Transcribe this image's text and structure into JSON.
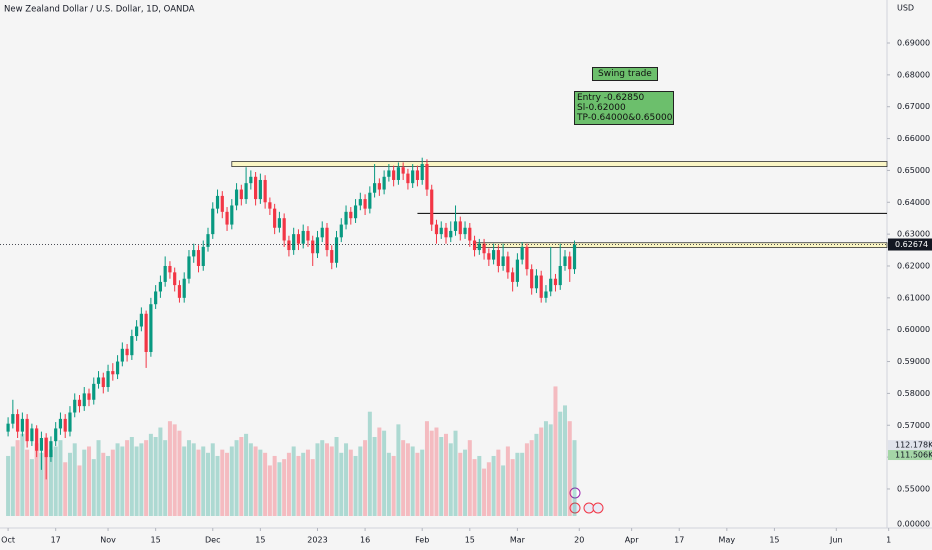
{
  "chart_data": {
    "type": "candlestick",
    "title": "New Zealand Dollar / U.S. Dollar, 1D, OANDA",
    "currency": "USD",
    "up_color": "#089981",
    "down_color": "#f23645",
    "xlim": [
      -1.7,
      184.65
    ],
    "ylim": [
      0.539,
      0.7035
    ],
    "volume_ylim": [
      0,
      250
    ],
    "bottom_axis_label": "0.00000",
    "yticks": [
      {
        "value": 0.69,
        "label": "0.69000"
      },
      {
        "value": 0.68,
        "label": "0.68000"
      },
      {
        "value": 0.67,
        "label": "0.67000"
      },
      {
        "value": 0.66,
        "label": "0.66000"
      },
      {
        "value": 0.65,
        "label": "0.65000"
      },
      {
        "value": 0.64,
        "label": "0.64000"
      },
      {
        "value": 0.63,
        "label": "0.63000"
      },
      {
        "value": 0.62,
        "label": "0.62000"
      },
      {
        "value": 0.61,
        "label": "0.61000"
      },
      {
        "value": 0.6,
        "label": "0.60000"
      },
      {
        "value": 0.59,
        "label": "0.59000"
      },
      {
        "value": 0.58,
        "label": "0.58000"
      },
      {
        "value": 0.57,
        "label": "0.57000"
      },
      {
        "value": 0.56,
        "label": "0.56000"
      },
      {
        "value": 0.55,
        "label": "0.55000"
      }
    ],
    "xticks": [
      {
        "value": 0,
        "label": "Oct"
      },
      {
        "value": 10,
        "label": "17"
      },
      {
        "value": 21,
        "label": "Nov"
      },
      {
        "value": 31,
        "label": "15"
      },
      {
        "value": 43,
        "label": "Dec"
      },
      {
        "value": 53,
        "label": "15"
      },
      {
        "value": 65,
        "label": "2023"
      },
      {
        "value": 75,
        "label": "16"
      },
      {
        "value": 87,
        "label": "Feb"
      },
      {
        "value": 97,
        "label": "15"
      },
      {
        "value": 107,
        "label": "Mar"
      },
      {
        "value": 120,
        "label": "20"
      },
      {
        "value": 131,
        "label": "Apr"
      },
      {
        "value": 141,
        "label": "17"
      },
      {
        "value": 151,
        "label": "May"
      },
      {
        "value": 161,
        "label": "15"
      },
      {
        "value": 174,
        "label": "Jun"
      },
      {
        "value": 185,
        "label": "1"
      }
    ],
    "open": [
      0.568,
      0.5705,
      0.5735,
      0.568,
      0.572,
      0.565,
      0.569,
      0.562,
      0.566,
      0.56,
      0.565,
      0.569,
      0.572,
      0.568,
      0.574,
      0.578,
      0.576,
      0.58,
      0.578,
      0.583,
      0.585,
      0.582,
      0.587,
      0.586,
      0.59,
      0.594,
      0.592,
      0.598,
      0.601,
      0.605,
      0.593,
      0.608,
      0.612,
      0.615,
      0.62,
      0.618,
      0.614,
      0.61,
      0.616,
      0.623,
      0.625,
      0.62,
      0.626,
      0.63,
      0.638,
      0.642,
      0.637,
      0.633,
      0.639,
      0.644,
      0.641,
      0.646,
      0.648,
      0.641,
      0.647,
      0.64,
      0.638,
      0.632,
      0.635,
      0.628,
      0.625,
      0.63,
      0.627,
      0.631,
      0.628,
      0.624,
      0.629,
      0.632,
      0.625,
      0.621,
      0.629,
      0.633,
      0.637,
      0.635,
      0.639,
      0.641,
      0.638,
      0.643,
      0.646,
      0.644,
      0.648,
      0.65,
      0.647,
      0.651,
      0.649,
      0.646,
      0.65,
      0.647,
      0.652,
      0.644,
      0.633,
      0.63,
      0.632,
      0.629,
      0.631,
      0.634,
      0.63,
      0.632,
      0.628,
      0.625,
      0.627,
      0.624,
      0.622,
      0.625,
      0.62,
      0.623,
      0.618,
      0.615,
      0.622,
      0.626,
      0.619,
      0.613,
      0.617,
      0.61,
      0.612,
      0.616,
      0.614,
      0.62,
      0.623,
      0.619
    ],
    "high": [
      0.5725,
      0.578,
      0.575,
      0.574,
      0.5735,
      0.5705,
      0.57,
      0.568,
      0.5675,
      0.5665,
      0.571,
      0.574,
      0.5735,
      0.576,
      0.58,
      0.5795,
      0.582,
      0.5815,
      0.585,
      0.587,
      0.5865,
      0.589,
      0.5895,
      0.592,
      0.596,
      0.5955,
      0.6,
      0.603,
      0.607,
      0.606,
      0.61,
      0.614,
      0.617,
      0.623,
      0.6215,
      0.6195,
      0.6155,
      0.618,
      0.625,
      0.627,
      0.6265,
      0.628,
      0.632,
      0.64,
      0.644,
      0.6435,
      0.6385,
      0.641,
      0.646,
      0.6455,
      0.651,
      0.65,
      0.6495,
      0.649,
      0.6485,
      0.6415,
      0.6395,
      0.637,
      0.6365,
      0.6295,
      0.632,
      0.6315,
      0.633,
      0.6325,
      0.6295,
      0.631,
      0.634,
      0.6335,
      0.6265,
      0.631,
      0.635,
      0.639,
      0.6385,
      0.641,
      0.643,
      0.6425,
      0.645,
      0.652,
      0.6475,
      0.65,
      0.652,
      0.6515,
      0.6525,
      0.6525,
      0.6505,
      0.652,
      0.6515,
      0.654,
      0.6535,
      0.6455,
      0.6345,
      0.634,
      0.6335,
      0.634,
      0.639,
      0.6355,
      0.634,
      0.6335,
      0.6295,
      0.6285,
      0.6285,
      0.6255,
      0.627,
      0.6265,
      0.627,
      0.6245,
      0.6195,
      0.624,
      0.6275,
      0.627,
      0.6205,
      0.619,
      0.6185,
      0.614,
      0.626,
      0.6175,
      0.627,
      0.625,
      0.6245,
      0.628
    ],
    "low": [
      0.5665,
      0.569,
      0.566,
      0.5665,
      0.563,
      0.5635,
      0.56,
      0.556,
      0.553,
      0.5585,
      0.5635,
      0.567,
      0.566,
      0.5665,
      0.5725,
      0.574,
      0.5745,
      0.576,
      0.5765,
      0.5815,
      0.58,
      0.5805,
      0.584,
      0.5845,
      0.5885,
      0.59,
      0.5905,
      0.5965,
      0.5995,
      0.588,
      0.5915,
      0.6065,
      0.61,
      0.6135,
      0.616,
      0.612,
      0.6085,
      0.6085,
      0.6145,
      0.621,
      0.618,
      0.6185,
      0.6245,
      0.6285,
      0.6365,
      0.635,
      0.631,
      0.6315,
      0.6375,
      0.639,
      0.6395,
      0.644,
      0.639,
      0.6395,
      0.638,
      0.636,
      0.63,
      0.6305,
      0.626,
      0.623,
      0.6235,
      0.625,
      0.6255,
      0.626,
      0.62,
      0.6225,
      0.6275,
      0.623,
      0.619,
      0.6195,
      0.6275,
      0.6315,
      0.633,
      0.6335,
      0.6375,
      0.636,
      0.6365,
      0.6415,
      0.642,
      0.6425,
      0.6465,
      0.645,
      0.6455,
      0.647,
      0.644,
      0.6445,
      0.645,
      0.6455,
      0.642,
      0.631,
      0.627,
      0.6285,
      0.627,
      0.6275,
      0.6295,
      0.628,
      0.6285,
      0.626,
      0.623,
      0.6235,
      0.622,
      0.62,
      0.6205,
      0.618,
      0.6185,
      0.616,
      0.612,
      0.6135,
      0.6205,
      0.617,
      0.611,
      0.6115,
      0.6085,
      0.6085,
      0.6105,
      0.612,
      0.6125,
      0.6185,
      0.615,
      0.6175
    ],
    "close": [
      0.5705,
      0.5735,
      0.568,
      0.572,
      0.565,
      0.569,
      0.562,
      0.566,
      0.56,
      0.565,
      0.569,
      0.572,
      0.568,
      0.574,
      0.578,
      0.576,
      0.58,
      0.578,
      0.583,
      0.585,
      0.582,
      0.587,
      0.586,
      0.59,
      0.594,
      0.592,
      0.598,
      0.601,
      0.605,
      0.593,
      0.608,
      0.612,
      0.615,
      0.62,
      0.618,
      0.614,
      0.61,
      0.616,
      0.623,
      0.625,
      0.62,
      0.626,
      0.63,
      0.638,
      0.642,
      0.637,
      0.633,
      0.639,
      0.644,
      0.641,
      0.646,
      0.648,
      0.641,
      0.647,
      0.64,
      0.638,
      0.632,
      0.635,
      0.628,
      0.625,
      0.63,
      0.627,
      0.631,
      0.628,
      0.624,
      0.629,
      0.632,
      0.625,
      0.621,
      0.629,
      0.633,
      0.637,
      0.635,
      0.639,
      0.641,
      0.638,
      0.643,
      0.646,
      0.644,
      0.648,
      0.65,
      0.647,
      0.651,
      0.649,
      0.646,
      0.65,
      0.647,
      0.652,
      0.644,
      0.633,
      0.63,
      0.632,
      0.629,
      0.631,
      0.634,
      0.63,
      0.632,
      0.628,
      0.625,
      0.627,
      0.624,
      0.622,
      0.625,
      0.62,
      0.623,
      0.618,
      0.615,
      0.622,
      0.626,
      0.619,
      0.613,
      0.617,
      0.61,
      0.612,
      0.616,
      0.614,
      0.62,
      0.623,
      0.619,
      0.6267
    ],
    "volume": [
      95,
      110,
      120,
      130,
      105,
      90,
      115,
      100,
      125,
      105,
      110,
      120,
      85,
      100,
      115,
      80,
      105,
      110,
      90,
      120,
      100,
      95,
      105,
      115,
      110,
      120,
      125,
      110,
      115,
      120,
      130,
      125,
      140,
      120,
      150,
      145,
      135,
      110,
      120,
      115,
      105,
      110,
      100,
      115,
      95,
      105,
      100,
      110,
      120,
      125,
      130,
      115,
      110,
      105,
      100,
      80,
      95,
      85,
      90,
      100,
      110,
      95,
      100,
      105,
      90,
      115,
      120,
      115,
      110,
      125,
      100,
      115,
      105,
      95,
      110,
      120,
      165,
      125,
      140,
      135,
      100,
      95,
      145,
      120,
      115,
      110,
      100,
      105,
      150,
      135,
      140,
      125,
      130,
      115,
      135,
      100,
      105,
      120,
      90,
      95,
      75,
      85,
      95,
      105,
      80,
      110,
      90,
      100,
      100,
      115,
      120,
      130,
      140,
      150,
      145,
      205,
      165,
      175,
      150,
      120
    ],
    "zones": [
      {
        "low": 0.6512,
        "high": 0.6528,
        "start": 47
      },
      {
        "low": 0.6258,
        "high": 0.6273,
        "start": 98
      }
    ],
    "levels": [
      {
        "value": 0.6365,
        "start": 86
      }
    ],
    "last_price": {
      "value": 0.62674,
      "label": "0.62674"
    },
    "volume_labels": [
      {
        "value": 112.178,
        "label": "112.178K"
      },
      {
        "value": 111.506,
        "label": "111.506K"
      }
    ],
    "annotation_title": "Swing trade",
    "annotation_lines": [
      "Entry -0.62850",
      "Sl-0.62000",
      "TP-0.64000&0.65000"
    ]
  }
}
